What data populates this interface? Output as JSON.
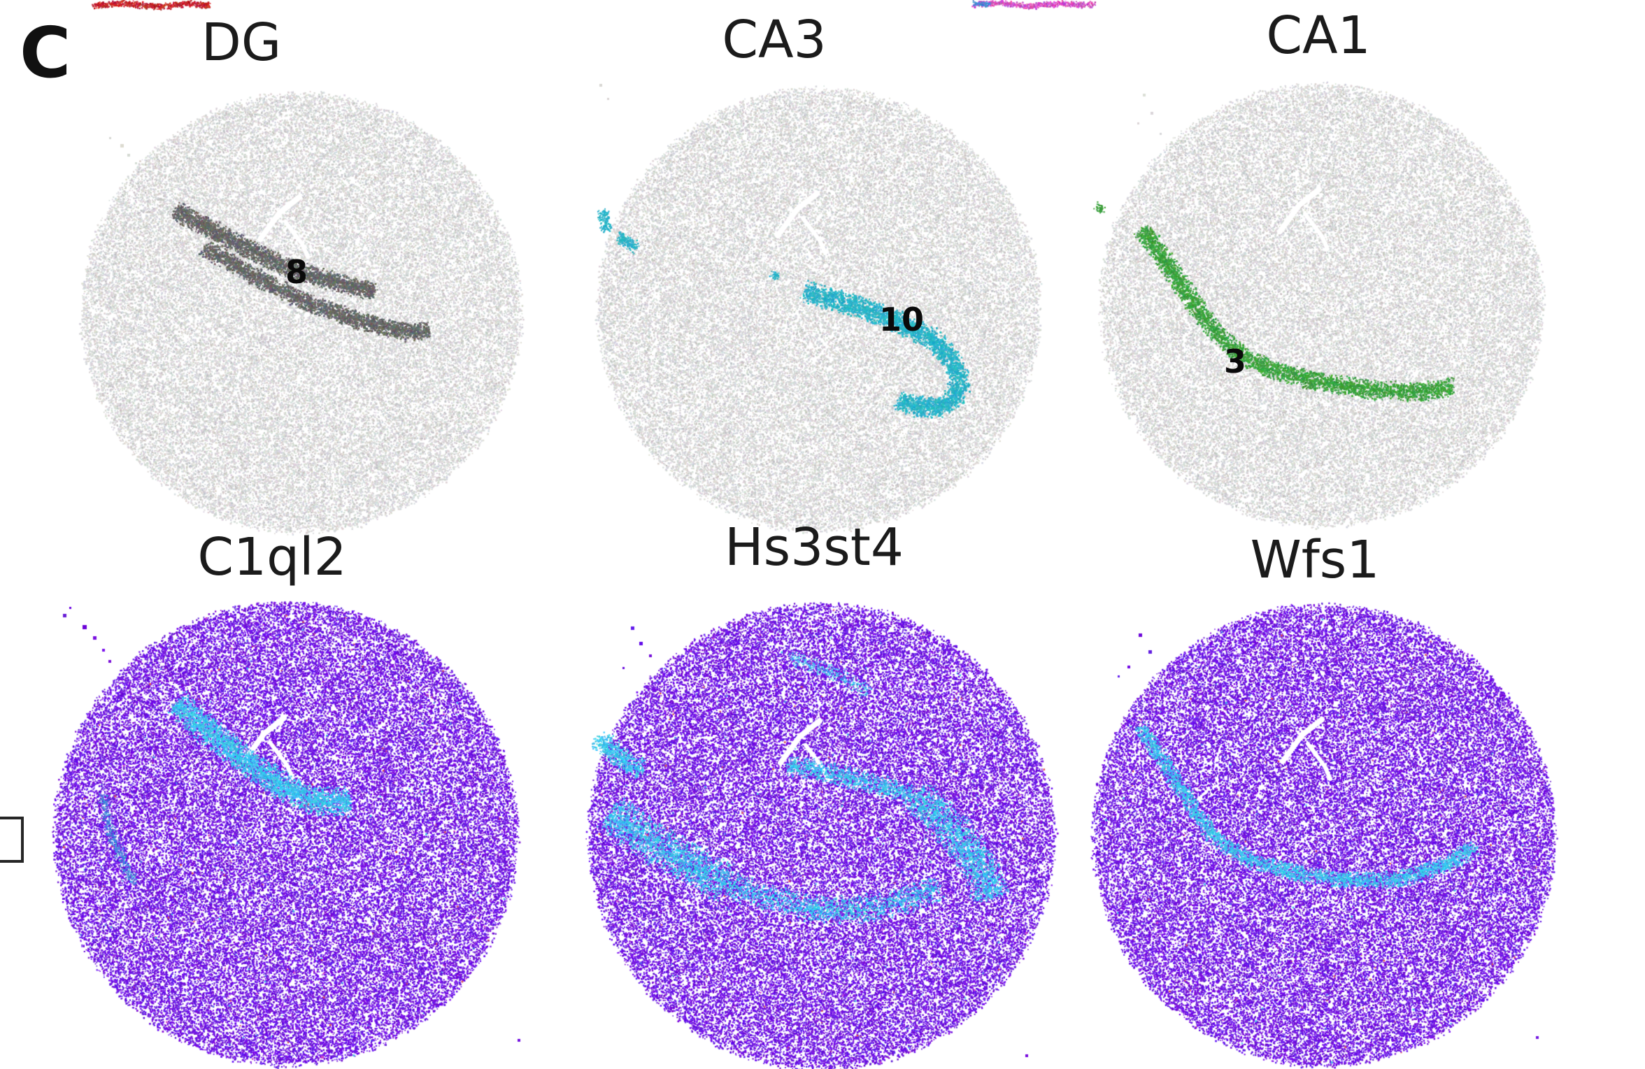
{
  "panel_label": "C",
  "top_row_panels": [
    {
      "title": "DG",
      "cluster_label": "8"
    },
    {
      "title": "CA3",
      "cluster_label": "10"
    },
    {
      "title": "CA1",
      "cluster_label": "3"
    }
  ],
  "bottom_row_panels": [
    {
      "title": "C1ql2"
    },
    {
      "title": "Hs3st4"
    },
    {
      "title": "Wfs1"
    }
  ],
  "colors": {
    "background": "#ffffff",
    "gray_points": "#d8d8d8",
    "gray_texture": "#c6c6c6",
    "dg_cluster": "#676767",
    "ca3_cluster": "#28b4c8",
    "ca1_cluster": "#3ba33d",
    "purple_points": "#6e12e2",
    "cyan_highlight": "#38c6ee",
    "label_text": "#111111",
    "artifact_red": "#c4242c",
    "artifact_pink": "#d44fc4",
    "artifact_blue": "#3f8fd8",
    "box_border": "#262626"
  }
}
